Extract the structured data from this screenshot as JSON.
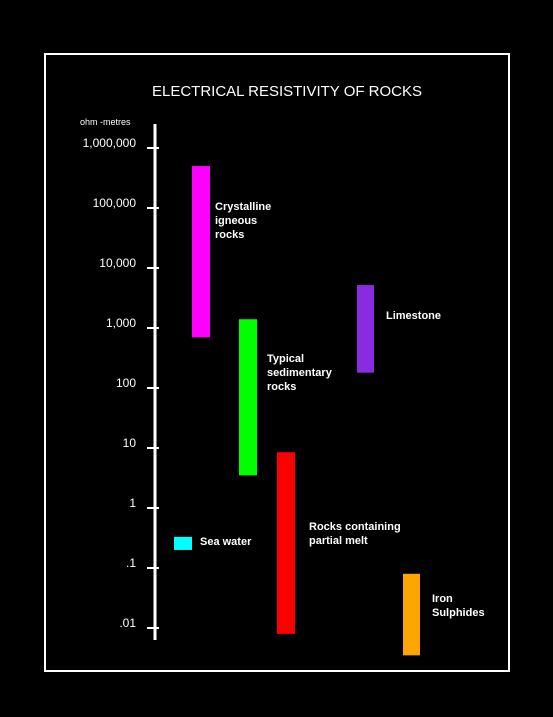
{
  "chart_data": {
    "type": "range-bar",
    "title": "ELECTRICAL RESISTIVITY OF ROCKS",
    "ylabel": "ohm -metres",
    "yscale": "log",
    "ylim": [
      0.003,
      4000000
    ],
    "yticks": [
      {
        "value": 1000000,
        "label": "1,000,000"
      },
      {
        "value": 100000,
        "label": "100,000"
      },
      {
        "value": 10000,
        "label": "10,000"
      },
      {
        "value": 1000,
        "label": "1,000"
      },
      {
        "value": 100,
        "label": "100"
      },
      {
        "value": 10,
        "label": "10"
      },
      {
        "value": 1,
        "label": "1"
      },
      {
        "value": 0.1,
        "label": ".1"
      },
      {
        "value": 0.01,
        "label": ".01"
      }
    ],
    "grid": false,
    "ranges": [
      {
        "label": [
          "Crystalline",
          "igneous",
          "rocks"
        ],
        "min": 700,
        "max": 500000,
        "color": "#ff00ff"
      },
      {
        "label": [
          "Typical",
          "sedimentary",
          "rocks"
        ],
        "min": 3.5,
        "max": 1400,
        "color": "#00ff00"
      },
      {
        "label": [
          "Limestone"
        ],
        "min": 180,
        "max": 5200,
        "color": "#8a2be2"
      },
      {
        "label": [
          "Rocks containing",
          "partial melt"
        ],
        "min": 0.008,
        "max": 8.5,
        "color": "#ff0000"
      },
      {
        "label": [
          "Sea water"
        ],
        "min": 0.2,
        "max": 0.33,
        "color": "#00ffff"
      },
      {
        "label": [
          "Iron",
          "Sulphides"
        ],
        "min": 0.0035,
        "max": 0.08,
        "color": "#ffa500"
      }
    ]
  }
}
